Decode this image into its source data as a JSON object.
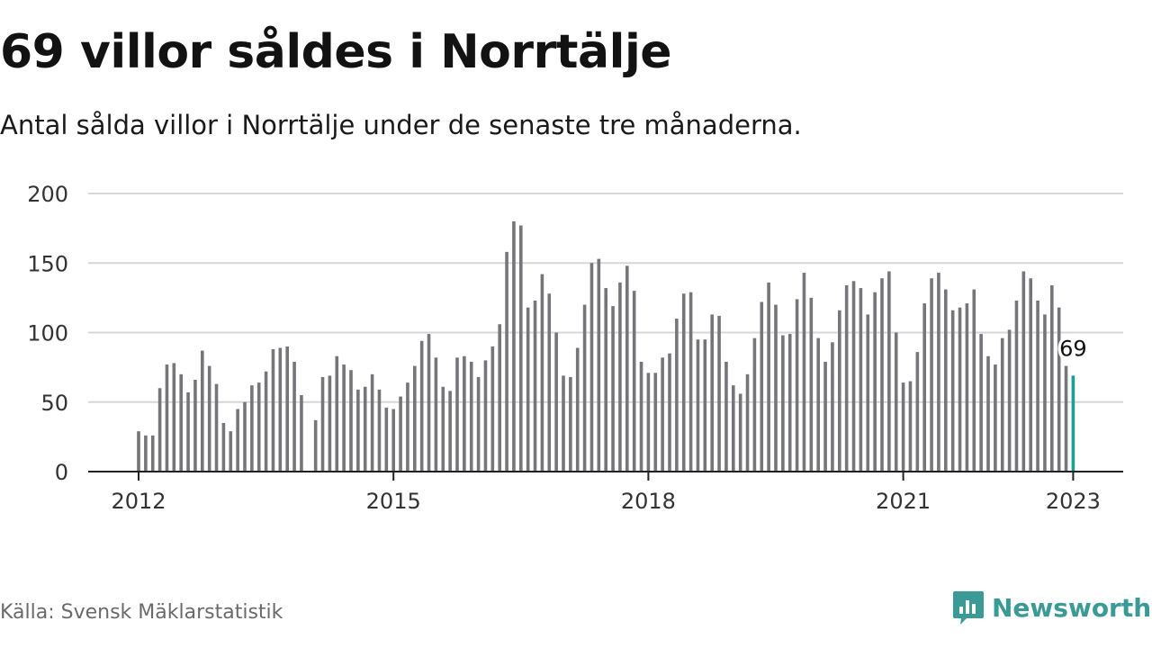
{
  "header": {
    "title": "69 villor såldes i Norrtälje",
    "subtitle": "Antal sålda villor i Norrtälje under de senaste tre månaderna."
  },
  "footer": {
    "source": "Källa: Svensk Mäklarstatistik",
    "brand": "Newsworthy",
    "brand_icon": "newsworthy-logo-icon"
  },
  "colors": {
    "bar": "#75757a",
    "highlight": "#1a9e98",
    "grid": "#d7d7d7",
    "axis": "#222222",
    "brand": "#3a9a96"
  },
  "chart_data": {
    "type": "bar",
    "x_start": "2012-01",
    "x_end": "2023-01",
    "x_unit": "month",
    "xticks": [
      "2012",
      "2015",
      "2018",
      "2021",
      "2023"
    ],
    "yticks": [
      0,
      50,
      100,
      150,
      200
    ],
    "ylim": [
      0,
      200
    ],
    "grid": true,
    "highlight_label": "69",
    "values": [
      29,
      26,
      26,
      60,
      77,
      78,
      70,
      57,
      66,
      87,
      76,
      63,
      35,
      29,
      45,
      50,
      62,
      64,
      72,
      88,
      89,
      90,
      79,
      55,
      null,
      37,
      68,
      69,
      83,
      77,
      73,
      59,
      61,
      70,
      59,
      46,
      45,
      54,
      64,
      76,
      94,
      99,
      82,
      61,
      58,
      82,
      83,
      79,
      68,
      80,
      90,
      106,
      158,
      180,
      177,
      118,
      123,
      142,
      128,
      100,
      69,
      68,
      89,
      120,
      150,
      153,
      132,
      119,
      136,
      148,
      130,
      79,
      71,
      71,
      82,
      85,
      110,
      128,
      129,
      95,
      95,
      113,
      112,
      79,
      62,
      56,
      70,
      96,
      122,
      136,
      120,
      98,
      99,
      124,
      143,
      125,
      96,
      79,
      93,
      116,
      134,
      137,
      132,
      113,
      129,
      139,
      144,
      100,
      64,
      65,
      86,
      121,
      139,
      143,
      131,
      116,
      118,
      121,
      131,
      99,
      83,
      77,
      96,
      102,
      123,
      144,
      139,
      123,
      113,
      134,
      118,
      76,
      69
    ]
  }
}
